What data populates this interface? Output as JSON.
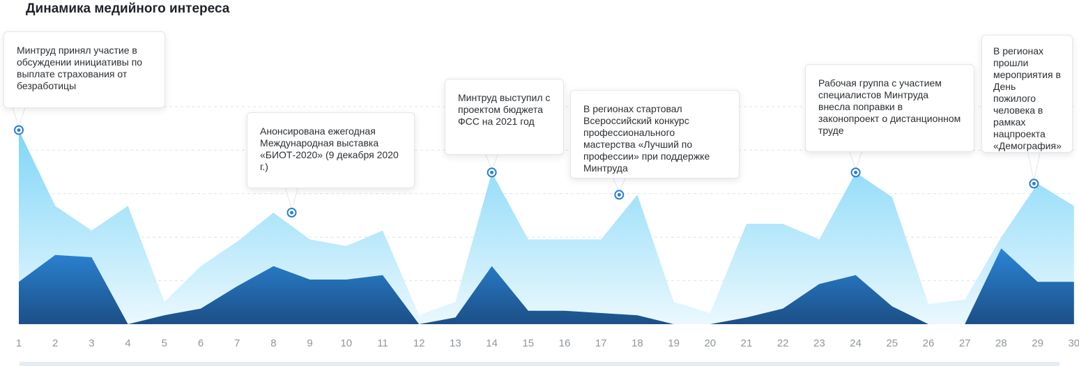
{
  "title": "Динамика медийного интереса",
  "chart_data": {
    "type": "area",
    "title": "Динамика медийного интереса",
    "x": [
      1,
      2,
      3,
      4,
      5,
      6,
      7,
      8,
      9,
      10,
      11,
      12,
      13,
      14,
      15,
      16,
      17,
      18,
      19,
      20,
      21,
      22,
      23,
      24,
      25,
      26,
      27,
      28,
      29,
      30
    ],
    "xlabel": "",
    "ylabel": "",
    "ylim": [
      0,
      100
    ],
    "grid": true,
    "series": [
      {
        "color": "#8fdcf8",
        "points": [
          [
            1,
            87
          ],
          [
            2,
            53
          ],
          [
            3,
            42
          ],
          [
            4,
            53
          ],
          [
            5,
            10
          ],
          [
            6,
            26
          ],
          [
            7,
            37
          ],
          [
            8,
            50
          ],
          [
            9,
            38
          ],
          [
            10,
            35
          ],
          [
            11,
            42
          ],
          [
            12,
            4
          ],
          [
            13,
            10
          ],
          [
            14,
            68
          ],
          [
            15,
            38
          ],
          [
            16,
            38
          ],
          [
            17,
            38
          ],
          [
            18,
            58
          ],
          [
            19,
            10
          ],
          [
            20,
            5
          ],
          [
            21,
            45
          ],
          [
            22,
            45
          ],
          [
            23,
            38
          ],
          [
            24,
            68
          ],
          [
            25,
            57
          ],
          [
            26,
            9
          ],
          [
            27,
            11
          ],
          [
            28,
            39
          ],
          [
            29,
            63
          ],
          [
            30,
            53
          ]
        ]
      },
      {
        "color": "#2379c8",
        "points": [
          [
            1,
            19
          ],
          [
            2,
            31
          ],
          [
            3,
            30
          ],
          [
            4,
            0
          ],
          [
            5,
            4
          ],
          [
            6,
            7
          ],
          [
            7,
            17
          ],
          [
            8,
            26
          ],
          [
            9,
            20
          ],
          [
            10,
            20
          ],
          [
            11,
            22
          ],
          [
            12,
            0
          ],
          [
            13,
            3
          ],
          [
            14,
            26
          ],
          [
            15,
            6
          ],
          [
            16,
            6
          ],
          [
            17,
            5
          ],
          [
            18,
            4
          ],
          [
            19,
            0
          ],
          [
            20,
            0
          ],
          [
            21,
            3
          ],
          [
            22,
            7
          ],
          [
            23,
            18
          ],
          [
            24,
            22
          ],
          [
            25,
            8
          ],
          [
            26,
            0
          ],
          [
            27,
            0
          ],
          [
            28,
            34
          ],
          [
            29,
            19
          ],
          [
            30,
            19
          ]
        ]
      }
    ],
    "annotations": [
      {
        "x": 1,
        "y": 87,
        "text": "Минтруд принял участие в обсуждении инициативы по выплате страхования от безработицы"
      },
      {
        "x": 8.5,
        "y": 50,
        "text": "Анонсирована ежегодная Международная выставка «БИОТ-2020» (9 декабря 2020 г.)"
      },
      {
        "x": 14,
        "y": 68,
        "text": "Минтруд выступил с проектом бюджета ФСС на 2021 год"
      },
      {
        "x": 17.5,
        "y": 58,
        "text": "В регионах стартовал Всероссийский конкурс профессионального мастерства «Лучший по профессии» при поддержке Минтруда"
      },
      {
        "x": 24,
        "y": 68,
        "text": "Рабочая группа с участием специалистов Минтруда внесла поправки в законопроект о дистанционном труде"
      },
      {
        "x": 28.9,
        "y": 63,
        "text": "В регионах прошли мероприятия в День пожилого человека в рамках нацпроекта «Демография»"
      }
    ]
  }
}
